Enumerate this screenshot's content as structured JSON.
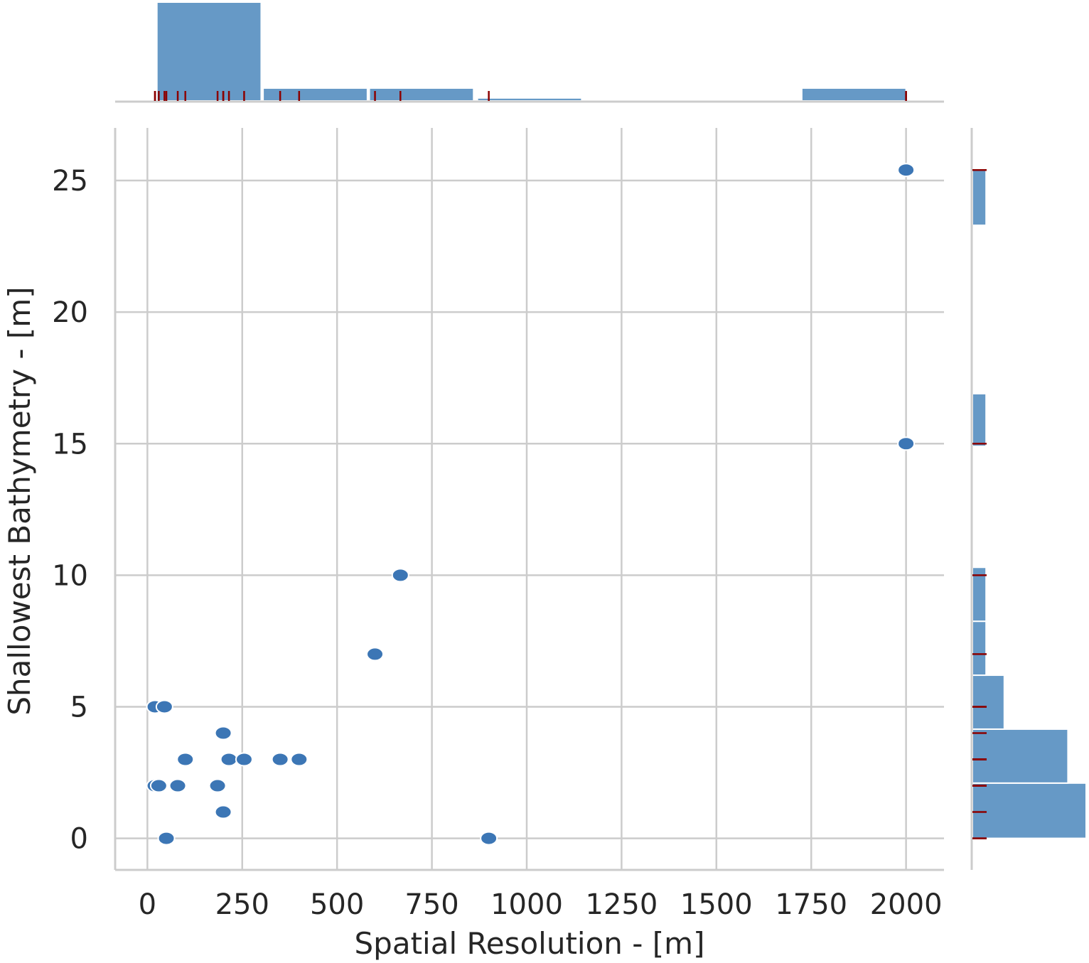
{
  "chart_data": {
    "type": "scatter",
    "title": "",
    "xlabel": "Spatial Resolution - [m]",
    "ylabel": "Shallowest Bathymetry - [m]",
    "xlim": [
      -85,
      2100
    ],
    "ylim": [
      -1.2,
      27
    ],
    "xticks": [
      0,
      250,
      500,
      750,
      1000,
      1250,
      1500,
      1750,
      2000
    ],
    "xtick_labels": [
      "0",
      "250",
      "500",
      "750",
      "1000",
      "1250",
      "1500",
      "1750",
      "2000"
    ],
    "yticks": [
      0,
      5,
      10,
      15,
      20,
      25
    ],
    "ytick_labels": [
      "0",
      "5",
      "10",
      "15",
      "20",
      "25"
    ],
    "grid": true,
    "point_color": "#3c76b5",
    "hist_color": "#6699c6",
    "rug_color": "#8b0000",
    "points": [
      {
        "x": 2000,
        "y": 25.4
      },
      {
        "x": 2000,
        "y": 15
      },
      {
        "x": 667,
        "y": 10
      },
      {
        "x": 600,
        "y": 7
      },
      {
        "x": 20,
        "y": 5
      },
      {
        "x": 45,
        "y": 5
      },
      {
        "x": 200,
        "y": 4
      },
      {
        "x": 100,
        "y": 3
      },
      {
        "x": 215,
        "y": 3
      },
      {
        "x": 255,
        "y": 3
      },
      {
        "x": 350,
        "y": 3
      },
      {
        "x": 400,
        "y": 3
      },
      {
        "x": 20,
        "y": 2
      },
      {
        "x": 30,
        "y": 2
      },
      {
        "x": 80,
        "y": 2
      },
      {
        "x": 185,
        "y": 2
      },
      {
        "x": 200,
        "y": 1
      },
      {
        "x": 50,
        "y": 0
      },
      {
        "x": 900,
        "y": 0
      }
    ],
    "x_marginal_histogram": {
      "bins": [
        {
          "start": 25,
          "end": 300,
          "density": 1.0
        },
        {
          "start": 305,
          "end": 580,
          "density": 0.13
        },
        {
          "start": 585,
          "end": 860,
          "density": 0.13
        },
        {
          "start": 870,
          "end": 1145,
          "density": 0.03
        },
        {
          "start": 1725,
          "end": 2000,
          "density": 0.13
        }
      ]
    },
    "y_marginal_histogram": {
      "bins": [
        {
          "start": 0,
          "end": 2.1,
          "density": 1.0
        },
        {
          "start": 2.1,
          "end": 4.15,
          "density": 0.84
        },
        {
          "start": 4.15,
          "end": 6.2,
          "density": 0.28
        },
        {
          "start": 6.2,
          "end": 8.25,
          "density": 0.12
        },
        {
          "start": 8.25,
          "end": 10.3,
          "density": 0.12
        },
        {
          "start": 14.9,
          "end": 16.9,
          "density": 0.12
        },
        {
          "start": 23.3,
          "end": 25.4,
          "density": 0.12
        }
      ]
    }
  }
}
